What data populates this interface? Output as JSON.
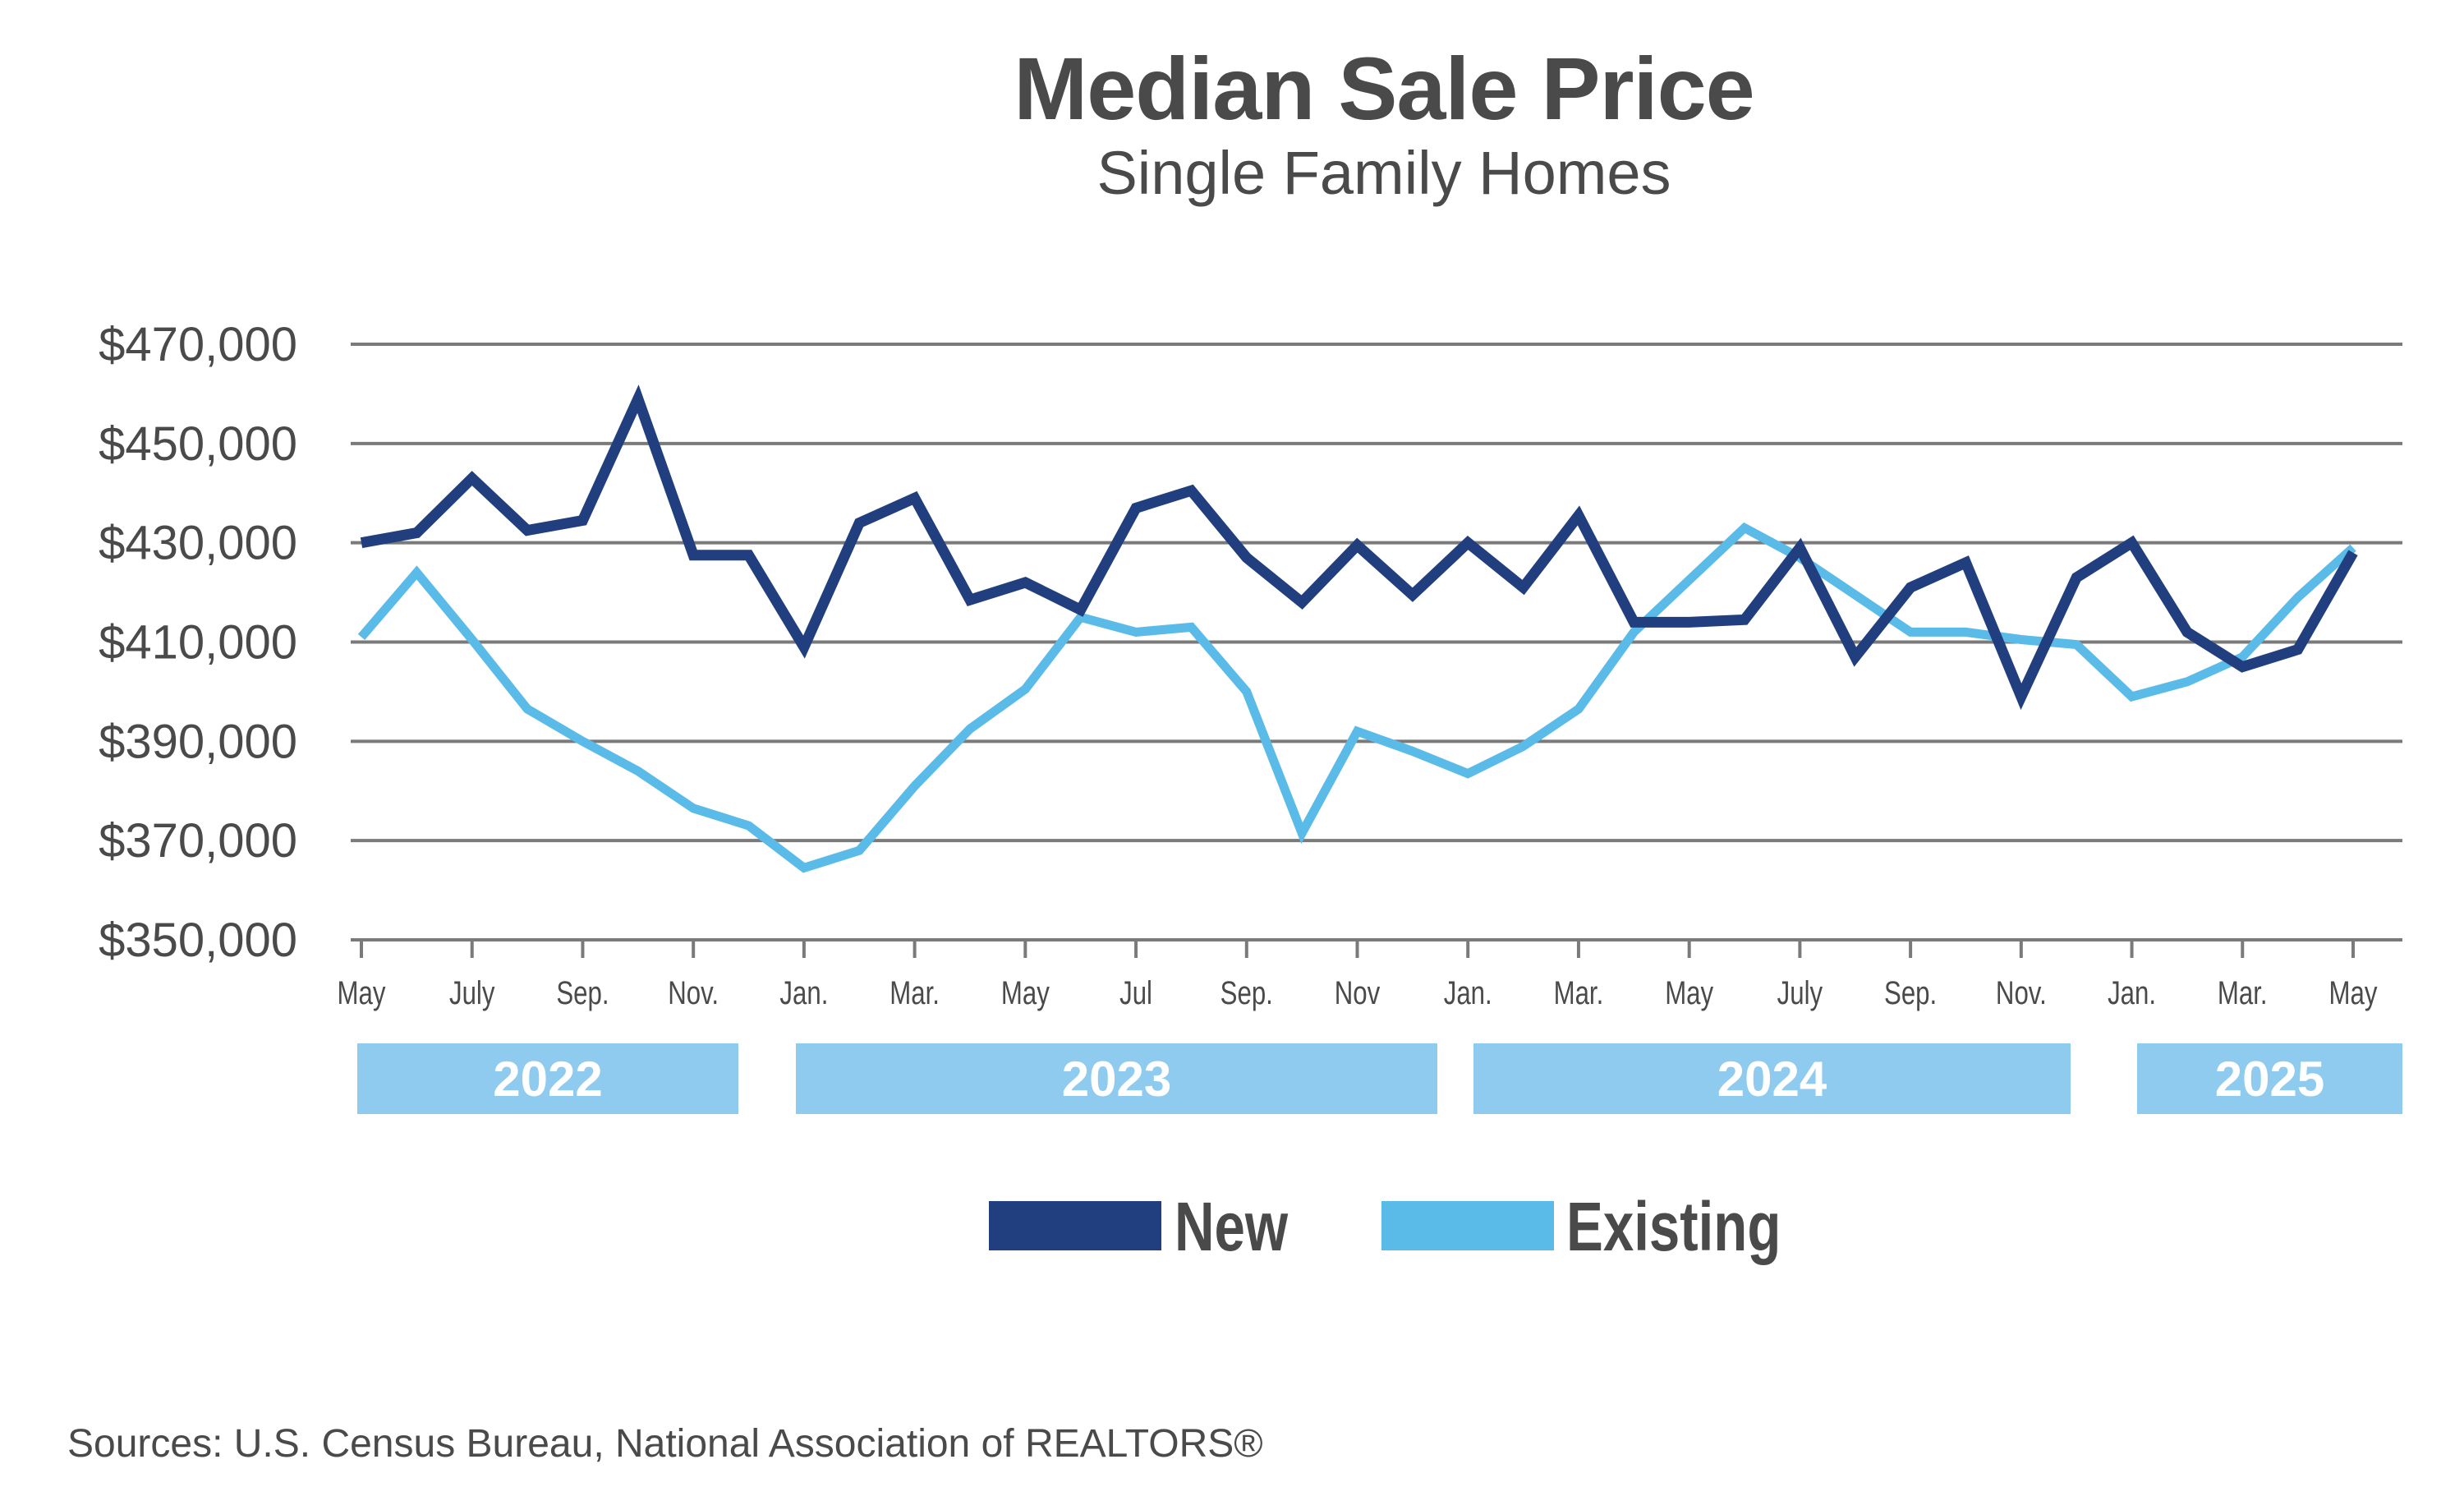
{
  "title": "Median Sale Price",
  "subtitle": "Single Family Homes",
  "source": "Sources: U.S. Census Bureau, National Association of REALTORS®",
  "years": [
    "2022",
    "2023",
    "2024",
    "2025"
  ],
  "chart_data": {
    "type": "line",
    "title": "Median Sale Price",
    "subtitle": "Single Family Homes",
    "x": [
      "May 2022",
      "Jun 2022",
      "Jul 2022",
      "Aug 2022",
      "Sep 2022",
      "Oct 2022",
      "Nov 2022",
      "Dec 2022",
      "Jan 2023",
      "Feb 2023",
      "Mar 2023",
      "Apr 2023",
      "May 2023",
      "Jun 2023",
      "Jul 2023",
      "Aug 2023",
      "Sep 2023",
      "Oct 2023",
      "Nov 2023",
      "Dec 2023",
      "Jan 2024",
      "Feb 2024",
      "Mar 2024",
      "Apr 2024",
      "May 2024",
      "Jun 2024",
      "Jul 2024",
      "Aug 2024",
      "Sep 2024",
      "Oct 2024",
      "Nov 2024",
      "Dec 2024",
      "Jan 2025",
      "Feb 2025",
      "Mar 2025",
      "Apr 2025",
      "May 2025"
    ],
    "x_tick_labels": [
      {
        "index": 0,
        "label": "May"
      },
      {
        "index": 2,
        "label": "July"
      },
      {
        "index": 4,
        "label": "Sep."
      },
      {
        "index": 6,
        "label": "Nov."
      },
      {
        "index": 8,
        "label": "Jan."
      },
      {
        "index": 10,
        "label": "Mar."
      },
      {
        "index": 12,
        "label": "May"
      },
      {
        "index": 14,
        "label": "Jul"
      },
      {
        "index": 16,
        "label": "Sep."
      },
      {
        "index": 18,
        "label": "Nov"
      },
      {
        "index": 20,
        "label": "Jan."
      },
      {
        "index": 22,
        "label": "Mar."
      },
      {
        "index": 24,
        "label": "May"
      },
      {
        "index": 26,
        "label": "July"
      },
      {
        "index": 28,
        "label": "Sep."
      },
      {
        "index": 30,
        "label": "Nov."
      },
      {
        "index": 32,
        "label": "Jan."
      },
      {
        "index": 34,
        "label": "Mar."
      },
      {
        "index": 36,
        "label": "May"
      }
    ],
    "y_ticks": [
      350000,
      370000,
      390000,
      410000,
      430000,
      450000,
      470000
    ],
    "y_tick_labels": [
      "$350,000",
      "$370,000",
      "$390,000",
      "$410,000",
      "$430,000",
      "$450,000",
      "$470,000"
    ],
    "ylim": [
      350000,
      470000
    ],
    "grid": true,
    "legend_position": "bottom",
    "series": [
      {
        "name": "New",
        "color": "#213f7e",
        "values": [
          430000,
          432000,
          443000,
          432500,
          434500,
          459000,
          427500,
          427500,
          409000,
          434000,
          439000,
          418500,
          422000,
          416500,
          437000,
          440500,
          427000,
          418000,
          429500,
          419500,
          430000,
          421000,
          435500,
          414000,
          414000,
          414500,
          429000,
          407000,
          421000,
          426000,
          399000,
          423000,
          430000,
          412000,
          405000,
          408500,
          428000
        ]
      },
      {
        "name": "Existing",
        "color": "#5bbbe8",
        "values": [
          411000,
          424000,
          410500,
          396500,
          390000,
          384000,
          376500,
          373000,
          364500,
          368000,
          381000,
          392500,
          400500,
          415000,
          412000,
          413000,
          400000,
          371500,
          392000,
          388000,
          383500,
          389000,
          396500,
          412000,
          422500,
          433000,
          427000,
          419500,
          412000,
          412000,
          410500,
          409500,
          399000,
          402000,
          407000,
          419000,
          429000
        ]
      }
    ]
  }
}
